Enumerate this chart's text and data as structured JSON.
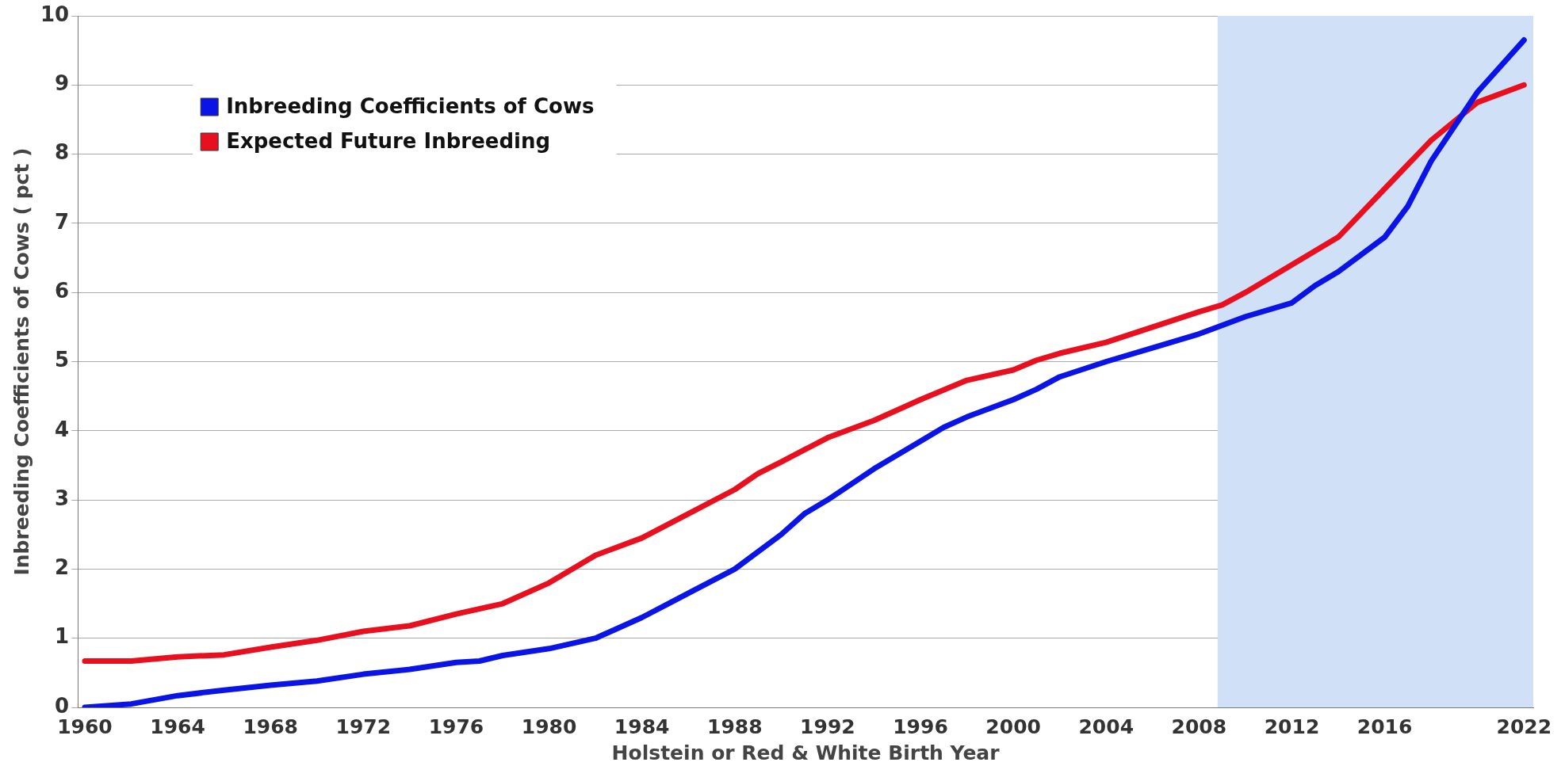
{
  "chart_data": {
    "type": "line",
    "xlabel": "Holstein or Red & White Birth Year",
    "ylabel": "Inbreeding Coefficients of Cows ( pct )",
    "xlim": [
      1959.7,
      2022.4
    ],
    "xticks": [
      1960,
      1964,
      1968,
      1972,
      1976,
      1980,
      1984,
      1988,
      1992,
      1996,
      2000,
      2004,
      2008,
      2012,
      2016,
      2022
    ],
    "ylim": [
      0,
      10
    ],
    "yticks": [
      0,
      1,
      2,
      3,
      4,
      5,
      6,
      7,
      8,
      9,
      10
    ],
    "grid": "y",
    "legend": "top left",
    "marker": "none",
    "line_style": "solid",
    "bands": [
      {
        "axis": "x",
        "from": 2008.8,
        "to": 2022.4,
        "color": "#cfe0f7"
      }
    ],
    "series": [
      {
        "name": "Inbreeding Coefficients of Cows",
        "color": "#0a14e6",
        "x": [
          1960,
          1962,
          1964,
          1966,
          1968,
          1970,
          1972,
          1974,
          1976,
          1977,
          1978,
          1980,
          1982,
          1984,
          1986,
          1988,
          1990,
          1991,
          1992,
          1994,
          1996,
          1997,
          1998,
          2000,
          2001,
          2002,
          2004,
          2006,
          2008,
          2010,
          2012,
          2013,
          2014,
          2016,
          2017,
          2018,
          2020,
          2022
        ],
        "values": [
          0.0,
          0.05,
          0.17,
          0.25,
          0.32,
          0.38,
          0.48,
          0.55,
          0.65,
          0.67,
          0.75,
          0.85,
          1.0,
          1.3,
          1.65,
          2.0,
          2.5,
          2.8,
          3.0,
          3.45,
          3.85,
          4.05,
          4.2,
          4.45,
          4.6,
          4.78,
          5.0,
          5.2,
          5.4,
          5.65,
          5.85,
          6.1,
          6.3,
          6.8,
          7.25,
          7.9,
          8.9,
          9.65
        ]
      },
      {
        "name": "Expected Future Inbreeding",
        "color": "#e8101e",
        "x": [
          1960,
          1962,
          1964,
          1966,
          1968,
          1970,
          1972,
          1974,
          1976,
          1978,
          1980,
          1982,
          1984,
          1986,
          1988,
          1989,
          1990,
          1992,
          1994,
          1996,
          1998,
          2000,
          2001,
          2002,
          2004,
          2006,
          2008,
          2009,
          2010,
          2012,
          2014,
          2016,
          2018,
          2020,
          2022
        ],
        "values": [
          0.67,
          0.67,
          0.73,
          0.76,
          0.87,
          0.97,
          1.1,
          1.18,
          1.35,
          1.5,
          1.8,
          2.2,
          2.45,
          2.8,
          3.15,
          3.38,
          3.55,
          3.9,
          4.15,
          4.45,
          4.73,
          4.88,
          5.02,
          5.12,
          5.28,
          5.5,
          5.72,
          5.82,
          6.0,
          6.4,
          6.8,
          7.5,
          8.2,
          8.75,
          9.0
        ]
      }
    ]
  }
}
